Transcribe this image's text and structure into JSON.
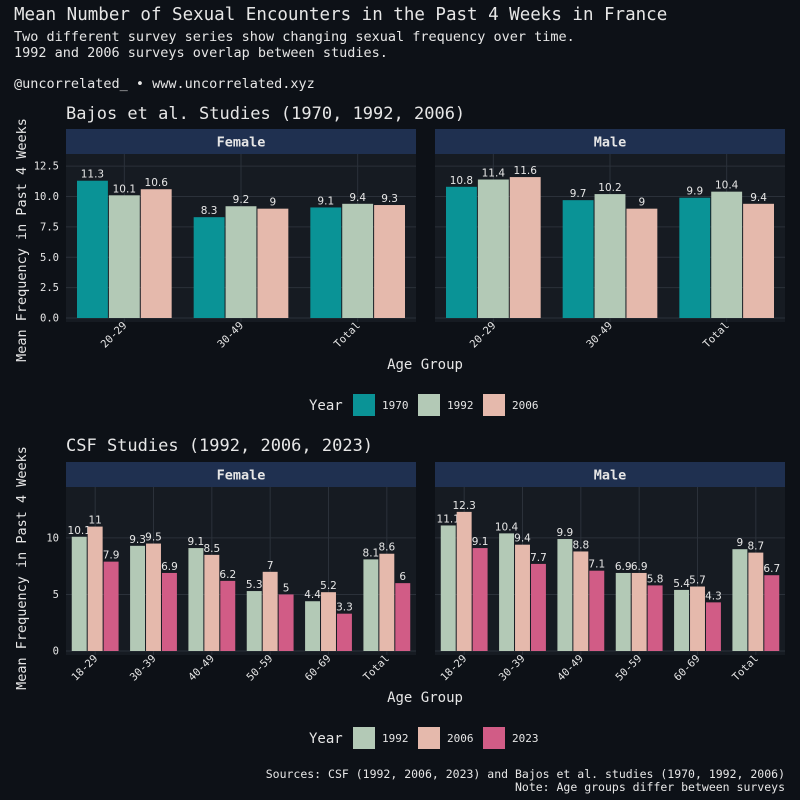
{
  "header": {
    "title": "Mean Number of Sexual Encounters in the Past 4 Weeks in France",
    "subtitle_line1": "Two different survey series show changing sexual frequency over time.",
    "subtitle_line2": "1992 and 2006 surveys overlap between studies.",
    "credit": "@uncorrelated_ • www.uncorrelated.xyz"
  },
  "footer": {
    "sources": "Sources: CSF (1992, 2006, 2023) and Bajos et al. studies (1970, 1992, 2006)",
    "note": "Note: Age groups differ between surveys"
  },
  "colors": {
    "background": "#0d1117",
    "panel": "#161b22",
    "strip": "#1f3050",
    "grid": "#2b313a",
    "text": "#e6e6e6",
    "year_1970": "#0a9396",
    "year_1992": "#b3c9b6",
    "year_2006": "#e5b9ac",
    "year_2023": "#d15c86"
  },
  "chart_data": [
    {
      "type": "bar",
      "title": "Bajos et al. Studies (1970, 1992, 2006)",
      "xlabel": "Age Group",
      "ylabel": "Mean Frequency in Past 4 Weeks",
      "ylim": [
        0,
        13.5
      ],
      "yticks": [
        0,
        2.5,
        5,
        7.5,
        10,
        12.5
      ],
      "ytick_labels": [
        "0.0",
        "2.5",
        "5.0",
        "7.5",
        "10.0",
        "12.5"
      ],
      "legend": {
        "title": "Year",
        "position": "bottom",
        "entries": [
          "1970",
          "1992",
          "2006"
        ]
      },
      "categories": [
        "20-29",
        "30-49",
        "Total"
      ],
      "facets": [
        {
          "label": "Female",
          "series": [
            {
              "name": "1970",
              "values": [
                11.3,
                8.3,
                9.1
              ],
              "labels": [
                "11.3",
                "8.3",
                "9.1"
              ]
            },
            {
              "name": "1992",
              "values": [
                10.1,
                9.2,
                9.4
              ],
              "labels": [
                "10.1",
                "9.2",
                "9.4"
              ]
            },
            {
              "name": "2006",
              "values": [
                10.6,
                9,
                9.3
              ],
              "labels": [
                "10.6",
                "9",
                "9.3"
              ]
            }
          ]
        },
        {
          "label": "Male",
          "series": [
            {
              "name": "1970",
              "values": [
                10.8,
                9.7,
                9.9
              ],
              "labels": [
                "10.8",
                "9.7",
                "9.9"
              ]
            },
            {
              "name": "1992",
              "values": [
                11.4,
                10.2,
                10.4
              ],
              "labels": [
                "11.4",
                "10.2",
                "10.4"
              ]
            },
            {
              "name": "2006",
              "values": [
                11.6,
                9,
                9.4
              ],
              "labels": [
                "11.6",
                "9",
                "9.4"
              ]
            }
          ]
        }
      ]
    },
    {
      "type": "bar",
      "title": "CSF Studies (1992, 2006, 2023)",
      "xlabel": "Age Group",
      "ylabel": "Mean Frequency in Past 4 Weeks",
      "ylim": [
        0,
        14.5
      ],
      "yticks": [
        0,
        5,
        10
      ],
      "ytick_labels": [
        "0",
        "5",
        "10"
      ],
      "legend": {
        "title": "Year",
        "position": "bottom",
        "entries": [
          "1992",
          "2006",
          "2023"
        ]
      },
      "categories": [
        "18-29",
        "30-39",
        "40-49",
        "50-59",
        "60-69",
        "Total"
      ],
      "facets": [
        {
          "label": "Female",
          "series": [
            {
              "name": "1992",
              "values": [
                10.1,
                9.3,
                9.1,
                5.3,
                4.4,
                8.1
              ],
              "labels": [
                "10.1",
                "9.3",
                "9.1",
                "5.3",
                "4.4",
                "8.1"
              ]
            },
            {
              "name": "2006",
              "values": [
                11,
                9.5,
                8.5,
                7,
                5.2,
                8.6
              ],
              "labels": [
                "11",
                "9.5",
                "8.5",
                "7",
                "5.2",
                "8.6"
              ]
            },
            {
              "name": "2023",
              "values": [
                7.9,
                6.9,
                6.2,
                5,
                3.3,
                6
              ],
              "labels": [
                "7.9",
                "6.9",
                "6.2",
                "5",
                "3.3",
                "6"
              ]
            }
          ]
        },
        {
          "label": "Male",
          "series": [
            {
              "name": "1992",
              "values": [
                11.1,
                10.4,
                9.9,
                6.9,
                5.4,
                9
              ],
              "labels": [
                "11.1",
                "10.4",
                "9.9",
                "6.9",
                "5.4",
                "9"
              ]
            },
            {
              "name": "2006",
              "values": [
                12.3,
                9.4,
                8.8,
                6.9,
                5.7,
                8.7
              ],
              "labels": [
                "12.3",
                "9.4",
                "8.8",
                "6.9",
                "5.7",
                "8.7"
              ]
            },
            {
              "name": "2023",
              "values": [
                9.1,
                7.7,
                7.1,
                5.8,
                4.3,
                6.7
              ],
              "labels": [
                "9.1",
                "7.7",
                "7.1",
                "5.8",
                "4.3",
                "6.7"
              ]
            }
          ]
        }
      ]
    }
  ]
}
